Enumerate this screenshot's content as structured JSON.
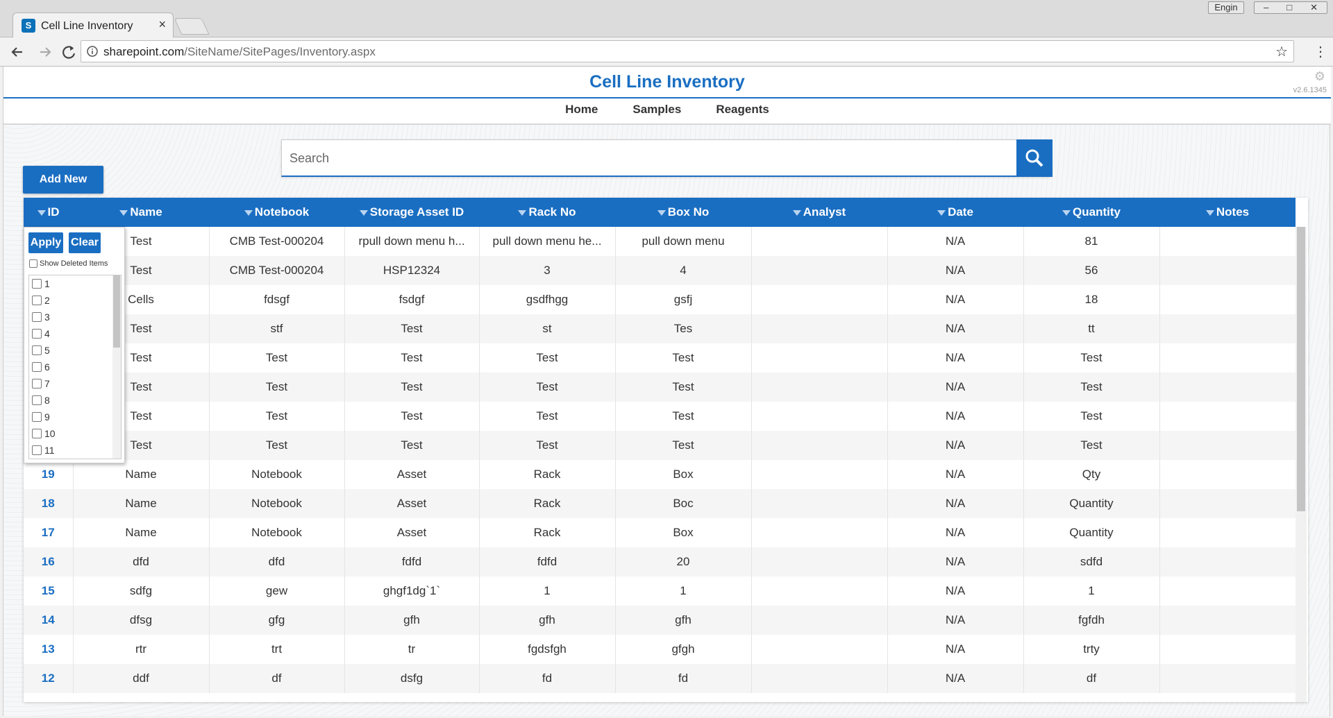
{
  "browser": {
    "tab_title": "Cell Line Inventory",
    "tab_icon": "S",
    "user": "Engin",
    "url_host": "sharepoint.com",
    "url_path": "/SiteName/SitePages/Inventory.aspx"
  },
  "header": {
    "title": "Cell Line Inventory",
    "version": "v2.6.1345",
    "nav": [
      "Home",
      "Samples",
      "Reagents"
    ]
  },
  "search": {
    "placeholder": "Search"
  },
  "add_new": "Add New",
  "filter": {
    "apply": "Apply",
    "clear": "Clear",
    "show_deleted": "Show Deleted Items",
    "options": [
      1,
      2,
      3,
      4,
      5,
      6,
      7,
      8,
      9,
      10,
      11
    ]
  },
  "table": {
    "columns": [
      "ID",
      "Name",
      "Notebook",
      "Storage Asset ID",
      "Rack No",
      "Box No",
      "Analyst",
      "Date",
      "Quantity",
      "Notes"
    ],
    "rows": [
      [
        null,
        "Test",
        "CMB Test-000204",
        "rpull down menu h...",
        "pull down menu he...",
        "pull down menu",
        "N/A",
        81
      ],
      [
        null,
        "Test",
        "CMB Test-000204",
        "HSP12324",
        3,
        4,
        "N/A",
        56
      ],
      [
        null,
        "Cells",
        "fdsgf",
        "fsdgf",
        "gsdfhgg",
        "gsfj",
        "N/A",
        18
      ],
      [
        null,
        "Test",
        "stf",
        "Test",
        "st",
        "Tes",
        "N/A",
        "tt"
      ],
      [
        null,
        "Test",
        "Test",
        "Test",
        "Test",
        "Test",
        "N/A",
        "Test"
      ],
      [
        null,
        "Test",
        "Test",
        "Test",
        "Test",
        "Test",
        "N/A",
        "Test"
      ],
      [
        null,
        "Test",
        "Test",
        "Test",
        "Test",
        "Test",
        "N/A",
        "Test"
      ],
      [
        null,
        "Test",
        "Test",
        "Test",
        "Test",
        "Test",
        "N/A",
        "Test"
      ],
      [
        19,
        "Name",
        "Notebook",
        "Asset",
        "Rack",
        "Box",
        "N/A",
        "Qty"
      ],
      [
        18,
        "Name",
        "Notebook",
        "Asset",
        "Rack",
        "Boc",
        "N/A",
        "Quantity"
      ],
      [
        17,
        "Name",
        "Notebook",
        "Asset",
        "Rack",
        "Box",
        "N/A",
        "Quantity"
      ],
      [
        16,
        "dfd",
        "dfd",
        "fdfd",
        "fdfd",
        20,
        "N/A",
        "sdfd"
      ],
      [
        15,
        "sdfg",
        "gew",
        "ghgf1dg`1`",
        1,
        1,
        "N/A",
        1
      ],
      [
        14,
        "dfsg",
        "gfg",
        "gfh",
        "gfh",
        "gfh",
        "N/A",
        "fgfdh"
      ],
      [
        13,
        "rtr",
        "trt",
        "tr",
        "fgdsfgh",
        "gfgh",
        "N/A",
        "trty"
      ],
      [
        12,
        "ddf",
        "df",
        "dsfg",
        "fd",
        "fd",
        "N/A",
        "df"
      ]
    ]
  }
}
